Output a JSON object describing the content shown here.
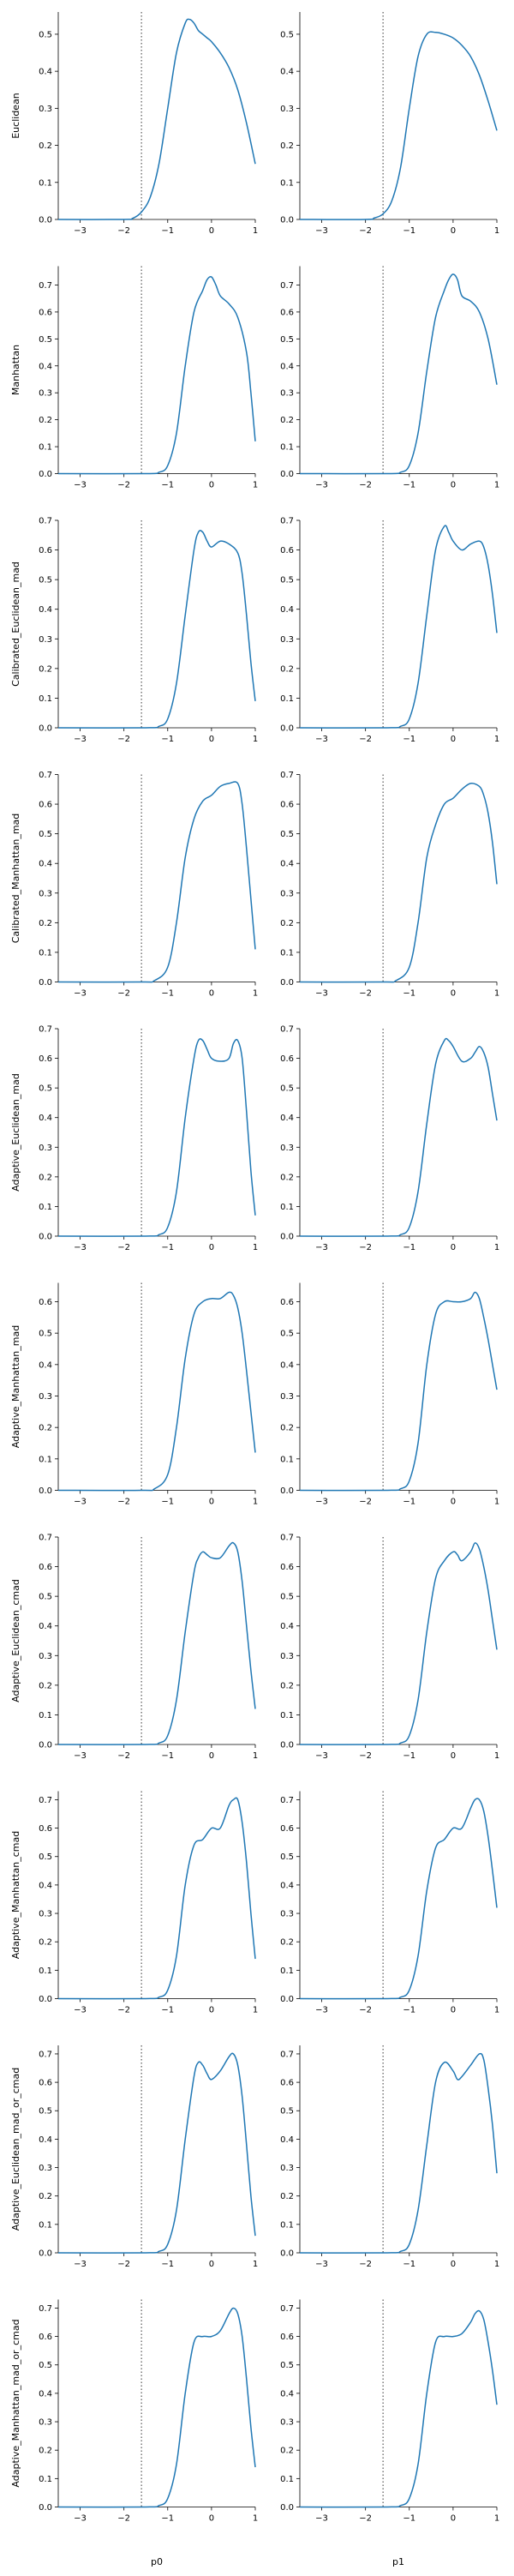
{
  "figure": {
    "columns": [
      "p0",
      "p1"
    ],
    "line_color": "#1f77b4",
    "threshold_x": -1.6,
    "xlim": [
      -3.5,
      1.0
    ],
    "xticks": [
      -3,
      -2,
      -1,
      0,
      1
    ],
    "xtick_labels": [
      "−3",
      "−2",
      "−1",
      "0",
      "1"
    ]
  },
  "chart_data": [
    {
      "type": "line",
      "ylabel": "Euclidean",
      "ylim": [
        0,
        0.56
      ],
      "yticks": [
        0.0,
        0.1,
        0.2,
        0.3,
        0.4,
        0.5
      ],
      "ytick_labels": [
        "0.0",
        "0.1",
        "0.2",
        "0.3",
        "0.4",
        "0.5"
      ],
      "series": [
        {
          "column": "p0",
          "x": [
            -3.5,
            -2.0,
            -1.8,
            -1.6,
            -1.4,
            -1.2,
            -1.0,
            -0.8,
            -0.6,
            -0.5,
            -0.4,
            -0.3,
            -0.2,
            -0.1,
            0.0,
            0.2,
            0.4,
            0.6,
            0.8,
            1.0
          ],
          "y": [
            0,
            0,
            0.003,
            0.02,
            0.06,
            0.15,
            0.3,
            0.45,
            0.53,
            0.54,
            0.53,
            0.51,
            0.5,
            0.49,
            0.48,
            0.45,
            0.41,
            0.35,
            0.26,
            0.15
          ]
        },
        {
          "column": "p1",
          "x": [
            -3.5,
            -2.0,
            -1.8,
            -1.6,
            -1.4,
            -1.2,
            -1.0,
            -0.8,
            -0.6,
            -0.4,
            -0.2,
            0.0,
            0.2,
            0.4,
            0.6,
            0.8,
            1.0
          ],
          "y": [
            0,
            0,
            0.004,
            0.015,
            0.05,
            0.14,
            0.3,
            0.44,
            0.5,
            0.505,
            0.5,
            0.49,
            0.47,
            0.44,
            0.39,
            0.32,
            0.24
          ]
        }
      ]
    },
    {
      "type": "line",
      "ylabel": "Manhattan",
      "ylim": [
        0,
        0.77
      ],
      "yticks": [
        0.0,
        0.1,
        0.2,
        0.3,
        0.4,
        0.5,
        0.6,
        0.7
      ],
      "ytick_labels": [
        "0.0",
        "0.1",
        "0.2",
        "0.3",
        "0.4",
        "0.5",
        "0.6",
        "0.7"
      ],
      "series": [
        {
          "column": "p0",
          "x": [
            -3.5,
            -1.5,
            -1.2,
            -1.0,
            -0.8,
            -0.6,
            -0.4,
            -0.2,
            -0.1,
            0.0,
            0.1,
            0.2,
            0.4,
            0.6,
            0.8,
            0.9,
            1.0
          ],
          "y": [
            0,
            0,
            0.005,
            0.03,
            0.15,
            0.4,
            0.6,
            0.68,
            0.72,
            0.73,
            0.7,
            0.66,
            0.63,
            0.58,
            0.45,
            0.3,
            0.12
          ]
        },
        {
          "column": "p1",
          "x": [
            -3.5,
            -1.5,
            -1.2,
            -1.0,
            -0.8,
            -0.6,
            -0.4,
            -0.2,
            -0.1,
            0.0,
            0.1,
            0.2,
            0.4,
            0.6,
            0.8,
            1.0
          ],
          "y": [
            0,
            0,
            0.005,
            0.03,
            0.15,
            0.38,
            0.58,
            0.68,
            0.72,
            0.74,
            0.72,
            0.66,
            0.64,
            0.6,
            0.5,
            0.33
          ]
        }
      ]
    },
    {
      "type": "line",
      "ylabel": "Calibrated_Euclidean_mad",
      "ylim": [
        0,
        0.7
      ],
      "yticks": [
        0.0,
        0.1,
        0.2,
        0.3,
        0.4,
        0.5,
        0.6,
        0.7
      ],
      "ytick_labels": [
        "0.0",
        "0.1",
        "0.2",
        "0.3",
        "0.4",
        "0.5",
        "0.6",
        "0.7"
      ],
      "series": [
        {
          "column": "p0",
          "x": [
            -3.5,
            -1.5,
            -1.2,
            -1.0,
            -0.8,
            -0.6,
            -0.4,
            -0.3,
            -0.2,
            -0.1,
            0.0,
            0.2,
            0.4,
            0.6,
            0.7,
            0.8,
            0.9,
            1.0
          ],
          "y": [
            0,
            0,
            0.005,
            0.03,
            0.15,
            0.38,
            0.6,
            0.66,
            0.66,
            0.63,
            0.61,
            0.63,
            0.62,
            0.59,
            0.52,
            0.38,
            0.22,
            0.09
          ]
        },
        {
          "column": "p1",
          "x": [
            -3.5,
            -1.5,
            -1.2,
            -1.0,
            -0.8,
            -0.6,
            -0.4,
            -0.2,
            -0.1,
            0.0,
            0.2,
            0.4,
            0.6,
            0.7,
            0.8,
            0.9,
            1.0
          ],
          "y": [
            0,
            0,
            0.005,
            0.03,
            0.15,
            0.38,
            0.6,
            0.68,
            0.66,
            0.63,
            0.6,
            0.62,
            0.63,
            0.61,
            0.55,
            0.45,
            0.32
          ]
        }
      ]
    },
    {
      "type": "line",
      "ylabel": "Calibrated_Manhattan_mad",
      "ylim": [
        0,
        0.7
      ],
      "yticks": [
        0.0,
        0.1,
        0.2,
        0.3,
        0.4,
        0.5,
        0.6,
        0.7
      ],
      "ytick_labels": [
        "0.0",
        "0.1",
        "0.2",
        "0.3",
        "0.4",
        "0.5",
        "0.6",
        "0.7"
      ],
      "series": [
        {
          "column": "p0",
          "x": [
            -3.5,
            -1.6,
            -1.3,
            -1.0,
            -0.8,
            -0.6,
            -0.4,
            -0.2,
            0.0,
            0.2,
            0.4,
            0.6,
            0.7,
            0.8,
            0.9,
            1.0
          ],
          "y": [
            0,
            0,
            0.005,
            0.05,
            0.2,
            0.42,
            0.55,
            0.61,
            0.63,
            0.66,
            0.67,
            0.67,
            0.6,
            0.45,
            0.28,
            0.11
          ]
        },
        {
          "column": "p1",
          "x": [
            -3.5,
            -1.6,
            -1.3,
            -1.0,
            -0.8,
            -0.6,
            -0.4,
            -0.2,
            0.0,
            0.2,
            0.4,
            0.6,
            0.7,
            0.8,
            0.9,
            1.0
          ],
          "y": [
            0,
            0,
            0.005,
            0.05,
            0.2,
            0.42,
            0.53,
            0.6,
            0.62,
            0.65,
            0.67,
            0.66,
            0.63,
            0.57,
            0.47,
            0.33
          ]
        }
      ]
    },
    {
      "type": "line",
      "ylabel": "Adaptive_Euclidean_mad",
      "ylim": [
        0,
        0.7
      ],
      "yticks": [
        0.0,
        0.1,
        0.2,
        0.3,
        0.4,
        0.5,
        0.6,
        0.7
      ],
      "ytick_labels": [
        "0.0",
        "0.1",
        "0.2",
        "0.3",
        "0.4",
        "0.5",
        "0.6",
        "0.7"
      ],
      "series": [
        {
          "column": "p0",
          "x": [
            -3.5,
            -1.5,
            -1.2,
            -1.0,
            -0.8,
            -0.6,
            -0.4,
            -0.3,
            -0.2,
            -0.1,
            0.0,
            0.2,
            0.4,
            0.5,
            0.6,
            0.7,
            0.8,
            0.9,
            1.0
          ],
          "y": [
            0,
            0,
            0.005,
            0.03,
            0.15,
            0.4,
            0.6,
            0.66,
            0.66,
            0.63,
            0.6,
            0.59,
            0.6,
            0.65,
            0.66,
            0.6,
            0.42,
            0.22,
            0.07
          ]
        },
        {
          "column": "p1",
          "x": [
            -3.5,
            -1.5,
            -1.2,
            -1.0,
            -0.8,
            -0.6,
            -0.4,
            -0.2,
            -0.1,
            0.0,
            0.2,
            0.4,
            0.5,
            0.6,
            0.7,
            0.8,
            0.9,
            1.0
          ],
          "y": [
            0,
            0,
            0.005,
            0.03,
            0.15,
            0.38,
            0.58,
            0.66,
            0.66,
            0.64,
            0.59,
            0.6,
            0.62,
            0.64,
            0.62,
            0.57,
            0.48,
            0.39
          ]
        }
      ]
    },
    {
      "type": "line",
      "ylabel": "Adaptive_Manhattan_mad",
      "ylim": [
        0,
        0.66
      ],
      "yticks": [
        0.0,
        0.1,
        0.2,
        0.3,
        0.4,
        0.5,
        0.6
      ],
      "ytick_labels": [
        "0.0",
        "0.1",
        "0.2",
        "0.3",
        "0.4",
        "0.5",
        "0.6"
      ],
      "series": [
        {
          "column": "p0",
          "x": [
            -3.5,
            -1.6,
            -1.3,
            -1.0,
            -0.8,
            -0.6,
            -0.4,
            -0.2,
            0.0,
            0.2,
            0.4,
            0.5,
            0.6,
            0.7,
            0.8,
            0.9,
            1.0
          ],
          "y": [
            0,
            0,
            0.005,
            0.05,
            0.2,
            0.42,
            0.56,
            0.6,
            0.61,
            0.61,
            0.63,
            0.62,
            0.58,
            0.5,
            0.38,
            0.25,
            0.12
          ]
        },
        {
          "column": "p1",
          "x": [
            -3.5,
            -1.5,
            -1.2,
            -1.0,
            -0.8,
            -0.6,
            -0.4,
            -0.2,
            0.0,
            0.2,
            0.4,
            0.5,
            0.6,
            0.7,
            0.8,
            0.9,
            1.0
          ],
          "y": [
            0,
            0,
            0.005,
            0.03,
            0.15,
            0.4,
            0.56,
            0.6,
            0.6,
            0.6,
            0.61,
            0.63,
            0.61,
            0.55,
            0.48,
            0.4,
            0.32
          ]
        }
      ]
    },
    {
      "type": "line",
      "ylabel": "Adaptive_Euclidean_cmad",
      "ylim": [
        0,
        0.7
      ],
      "yticks": [
        0.0,
        0.1,
        0.2,
        0.3,
        0.4,
        0.5,
        0.6,
        0.7
      ],
      "ytick_labels": [
        "0.0",
        "0.1",
        "0.2",
        "0.3",
        "0.4",
        "0.5",
        "0.6",
        "0.7"
      ],
      "series": [
        {
          "column": "p0",
          "x": [
            -3.5,
            -1.5,
            -1.2,
            -1.0,
            -0.8,
            -0.6,
            -0.4,
            -0.3,
            -0.2,
            -0.1,
            0.0,
            0.2,
            0.4,
            0.5,
            0.6,
            0.7,
            0.8,
            0.9,
            1.0
          ],
          "y": [
            0,
            0,
            0.005,
            0.03,
            0.15,
            0.38,
            0.58,
            0.63,
            0.65,
            0.64,
            0.63,
            0.63,
            0.67,
            0.68,
            0.65,
            0.55,
            0.4,
            0.25,
            0.12
          ]
        },
        {
          "column": "p1",
          "x": [
            -3.5,
            -1.5,
            -1.2,
            -1.0,
            -0.8,
            -0.6,
            -0.4,
            -0.2,
            0.0,
            0.1,
            0.2,
            0.4,
            0.5,
            0.6,
            0.7,
            0.8,
            0.9,
            1.0
          ],
          "y": [
            0,
            0,
            0.005,
            0.03,
            0.15,
            0.38,
            0.56,
            0.62,
            0.65,
            0.64,
            0.62,
            0.65,
            0.68,
            0.66,
            0.6,
            0.52,
            0.42,
            0.32
          ]
        }
      ]
    },
    {
      "type": "line",
      "ylabel": "Adaptive_Manhattan_cmad",
      "ylim": [
        0,
        0.73
      ],
      "yticks": [
        0.0,
        0.1,
        0.2,
        0.3,
        0.4,
        0.5,
        0.6,
        0.7
      ],
      "ytick_labels": [
        "0.0",
        "0.1",
        "0.2",
        "0.3",
        "0.4",
        "0.5",
        "0.6",
        "0.7"
      ],
      "series": [
        {
          "column": "p0",
          "x": [
            -3.5,
            -1.5,
            -1.2,
            -1.0,
            -0.8,
            -0.6,
            -0.4,
            -0.2,
            0.0,
            0.2,
            0.4,
            0.5,
            0.6,
            0.7,
            0.8,
            0.9,
            1.0
          ],
          "y": [
            0,
            0,
            0.005,
            0.03,
            0.15,
            0.4,
            0.54,
            0.56,
            0.6,
            0.6,
            0.68,
            0.7,
            0.7,
            0.62,
            0.48,
            0.3,
            0.14
          ]
        },
        {
          "column": "p1",
          "x": [
            -3.5,
            -1.5,
            -1.2,
            -1.0,
            -0.8,
            -0.6,
            -0.4,
            -0.2,
            0.0,
            0.2,
            0.4,
            0.5,
            0.6,
            0.7,
            0.8,
            0.9,
            1.0
          ],
          "y": [
            0,
            0,
            0.005,
            0.03,
            0.15,
            0.38,
            0.53,
            0.56,
            0.6,
            0.6,
            0.67,
            0.7,
            0.7,
            0.66,
            0.57,
            0.45,
            0.32
          ]
        }
      ]
    },
    {
      "type": "line",
      "ylabel": "Adaptive_Euclidean_mad_or_cmad",
      "ylim": [
        0,
        0.73
      ],
      "yticks": [
        0.0,
        0.1,
        0.2,
        0.3,
        0.4,
        0.5,
        0.6,
        0.7
      ],
      "ytick_labels": [
        "0.0",
        "0.1",
        "0.2",
        "0.3",
        "0.4",
        "0.5",
        "0.6",
        "0.7"
      ],
      "series": [
        {
          "column": "p0",
          "x": [
            -3.5,
            -1.5,
            -1.2,
            -1.0,
            -0.8,
            -0.6,
            -0.4,
            -0.3,
            -0.2,
            -0.1,
            0.0,
            0.2,
            0.4,
            0.5,
            0.6,
            0.7,
            0.8,
            0.9,
            1.0
          ],
          "y": [
            0,
            0,
            0.005,
            0.03,
            0.15,
            0.4,
            0.62,
            0.67,
            0.66,
            0.63,
            0.61,
            0.64,
            0.69,
            0.7,
            0.66,
            0.55,
            0.38,
            0.2,
            0.06
          ]
        },
        {
          "column": "p1",
          "x": [
            -3.5,
            -1.5,
            -1.2,
            -1.0,
            -0.8,
            -0.6,
            -0.4,
            -0.2,
            0.0,
            0.1,
            0.2,
            0.4,
            0.6,
            0.7,
            0.8,
            0.9,
            1.0
          ],
          "y": [
            0,
            0,
            0.005,
            0.03,
            0.15,
            0.38,
            0.6,
            0.67,
            0.64,
            0.61,
            0.62,
            0.66,
            0.7,
            0.68,
            0.58,
            0.45,
            0.28
          ]
        }
      ]
    },
    {
      "type": "line",
      "ylabel": "Adaptive_Manhattan_mad_or_cmad",
      "ylim": [
        0,
        0.73
      ],
      "yticks": [
        0.0,
        0.1,
        0.2,
        0.3,
        0.4,
        0.5,
        0.6,
        0.7
      ],
      "ytick_labels": [
        "0.0",
        "0.1",
        "0.2",
        "0.3",
        "0.4",
        "0.5",
        "0.6",
        "0.7"
      ],
      "series": [
        {
          "column": "p0",
          "x": [
            -3.5,
            -1.5,
            -1.2,
            -1.0,
            -0.8,
            -0.6,
            -0.4,
            -0.2,
            0.0,
            0.2,
            0.4,
            0.5,
            0.6,
            0.7,
            0.8,
            0.9,
            1.0
          ],
          "y": [
            0,
            0,
            0.005,
            0.03,
            0.15,
            0.4,
            0.58,
            0.6,
            0.6,
            0.62,
            0.68,
            0.7,
            0.68,
            0.6,
            0.45,
            0.28,
            0.14
          ]
        },
        {
          "column": "p1",
          "x": [
            -3.5,
            -1.5,
            -1.2,
            -1.0,
            -0.8,
            -0.6,
            -0.4,
            -0.2,
            0.0,
            0.2,
            0.4,
            0.5,
            0.6,
            0.7,
            0.8,
            0.9,
            1.0
          ],
          "y": [
            0,
            0,
            0.005,
            0.03,
            0.15,
            0.4,
            0.58,
            0.6,
            0.6,
            0.61,
            0.65,
            0.68,
            0.69,
            0.66,
            0.58,
            0.48,
            0.36
          ]
        }
      ]
    }
  ]
}
